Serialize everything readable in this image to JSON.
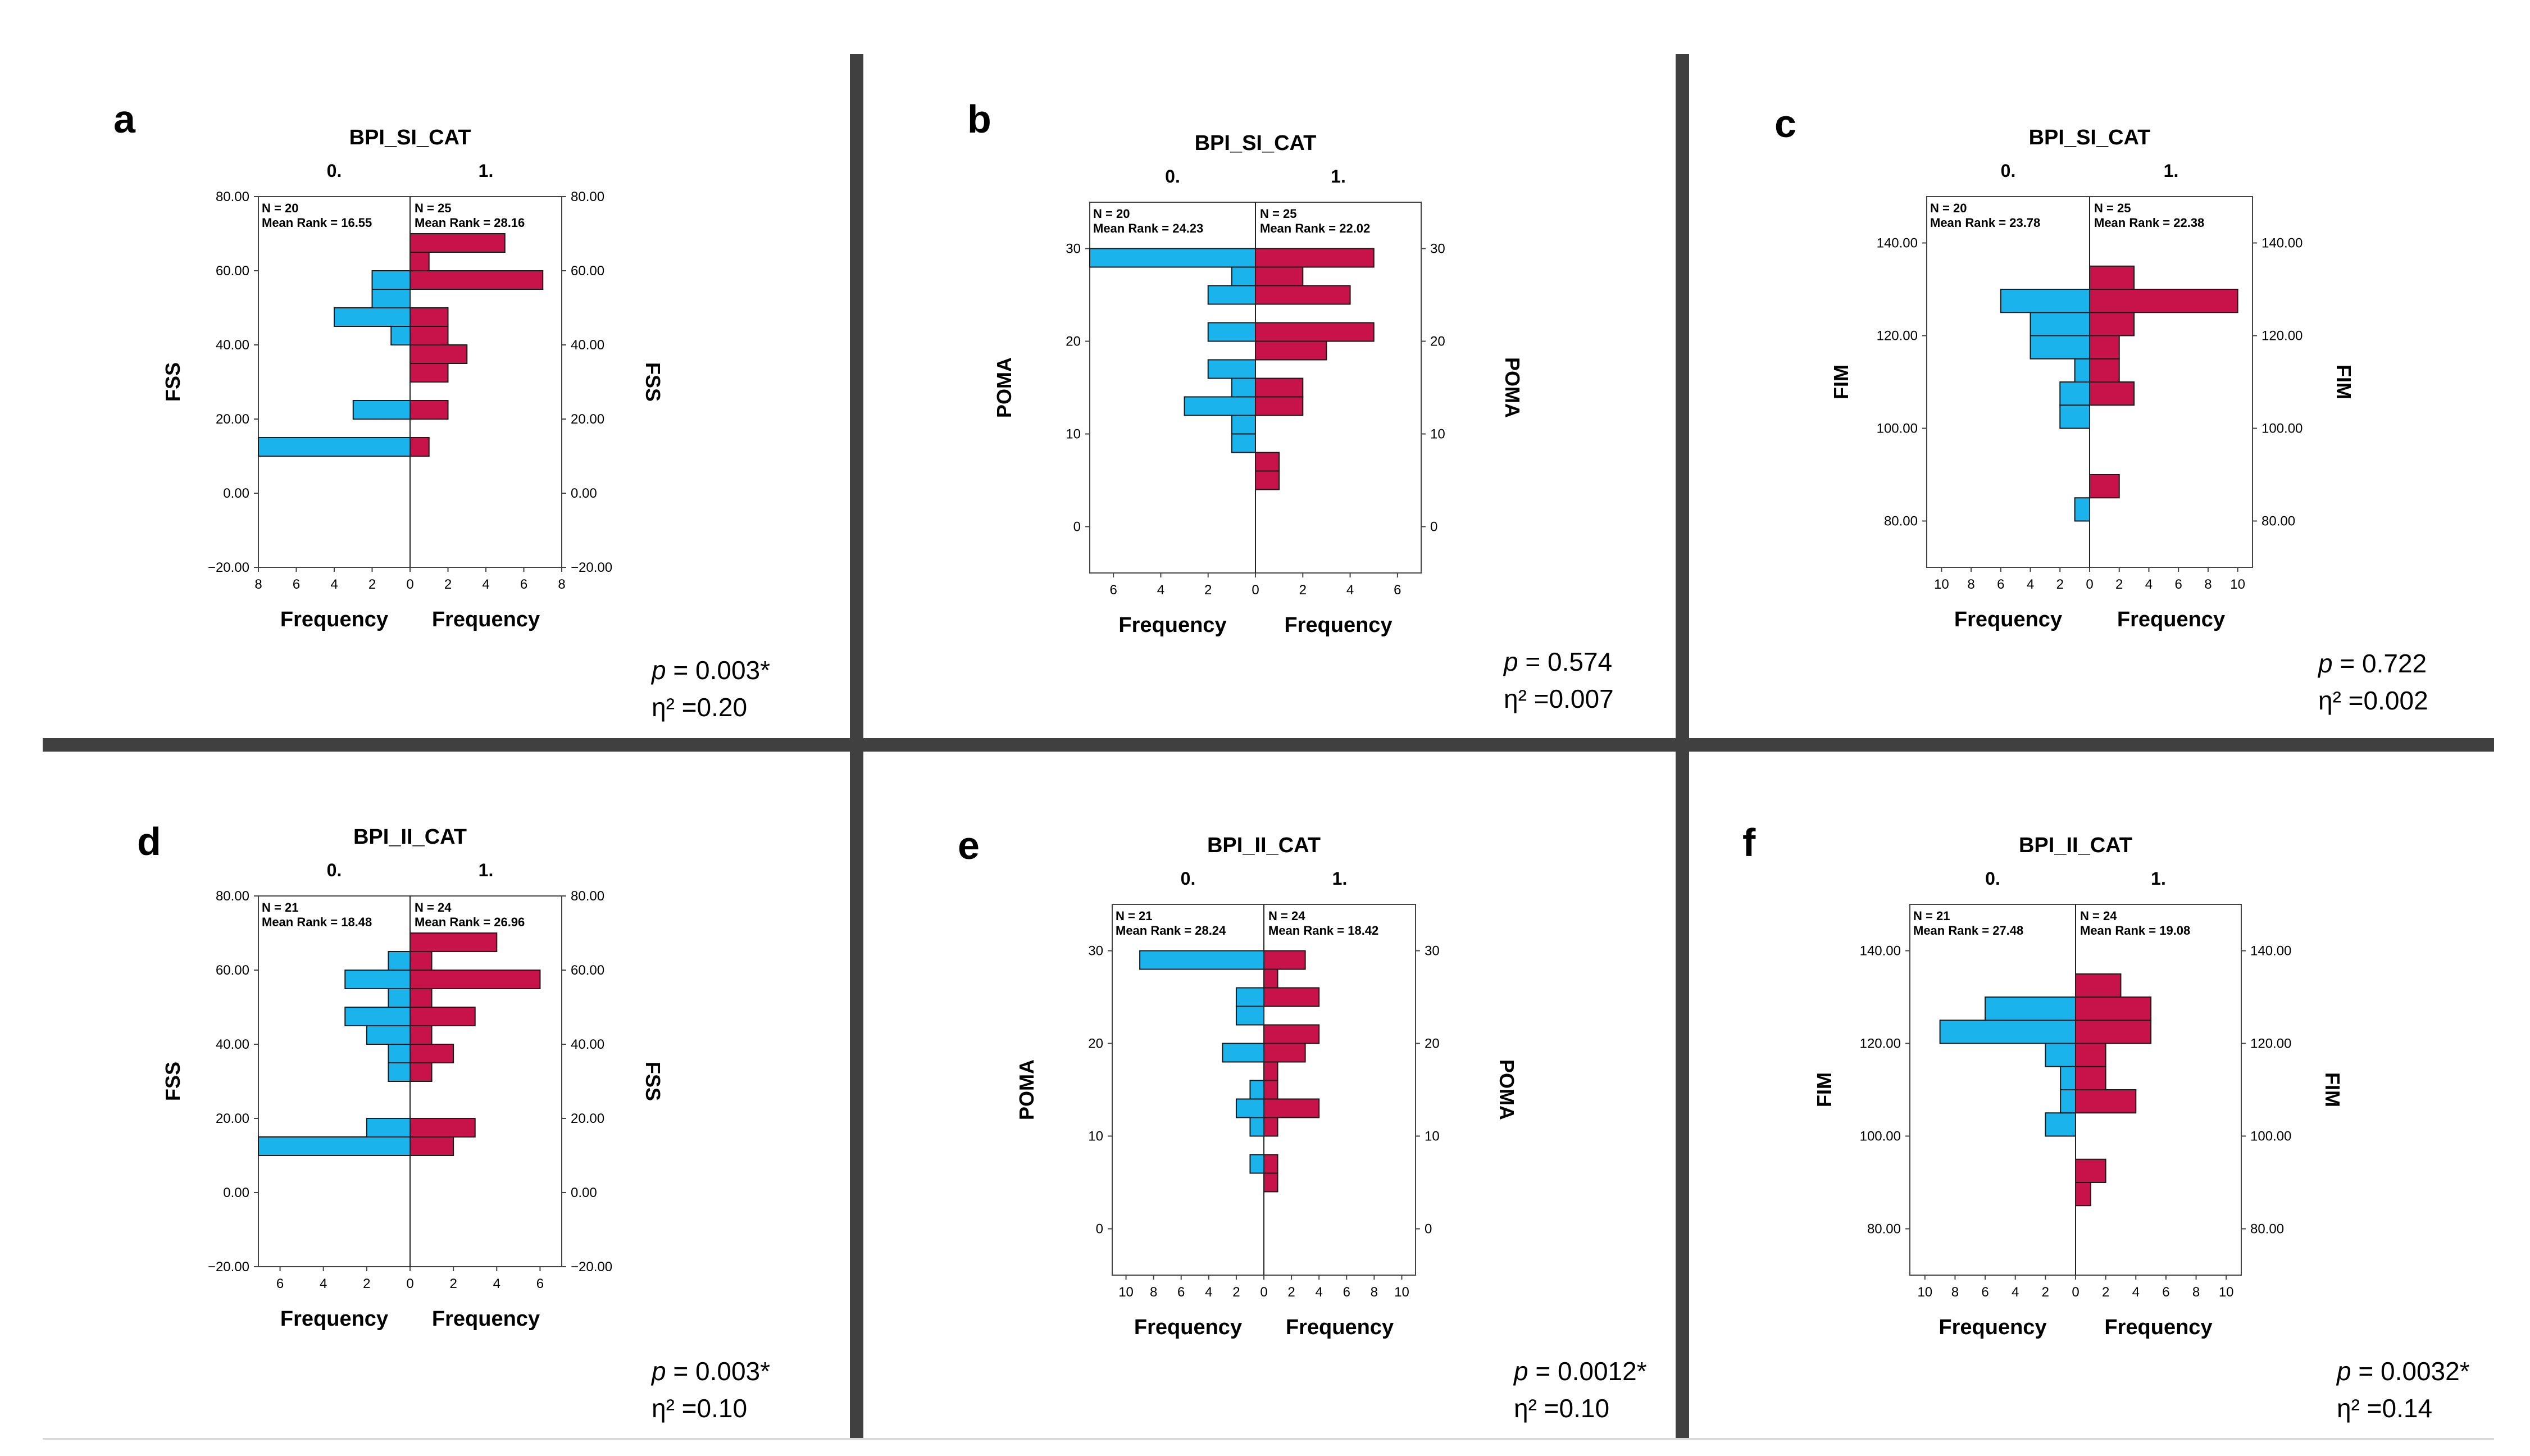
{
  "colors": {
    "group0": "#1bb3ec",
    "group1": "#c8124a",
    "stroke": "#1a1a1a",
    "divider": "#404040"
  },
  "panels": [
    {
      "label": "a",
      "p_prefix": "p",
      "p_rest": " = 0.003*",
      "eta_text": "η² =0.20"
    },
    {
      "label": "b",
      "p_prefix": "p",
      "p_rest": " = 0.574",
      "eta_text": "η² =0.007"
    },
    {
      "label": "c",
      "p_prefix": "p",
      "p_rest": " = 0.722",
      "eta_text": "η² =0.002"
    },
    {
      "label": "d",
      "p_prefix": "p",
      "p_rest": " = 0.003*",
      "eta_text": "η² =0.10"
    },
    {
      "label": "e",
      "p_prefix": "p",
      "p_rest": " = 0.0012*",
      "eta_text": "η² =0.10"
    },
    {
      "label": "f",
      "p_prefix": "p",
      "p_rest": " = 0.0032*",
      "eta_text": "η² =0.14"
    }
  ],
  "chart_data": [
    {
      "type": "bar",
      "orientation": "population-pyramid",
      "title": "BPI_SI_CAT",
      "ylabel": "FSS",
      "xlabel": "Frequency",
      "ylim": [
        -20,
        80
      ],
      "yticks": [
        -20,
        0,
        20,
        40,
        60,
        80
      ],
      "ytick_labels": [
        "−20.00",
        "0.00",
        "20.00",
        "40.00",
        "60.00",
        "80.00"
      ],
      "xmax": 8,
      "xticks": [
        8,
        6,
        4,
        2,
        0
      ],
      "bin_width": 5,
      "groups": [
        {
          "name": "0.",
          "n_text": "N = 20",
          "rank_text": "Mean Rank = 16.55",
          "bins": [
            [
              10,
              8
            ],
            [
              20,
              3
            ],
            [
              40,
              1
            ],
            [
              45,
              4
            ],
            [
              50,
              2
            ],
            [
              55,
              2
            ]
          ]
        },
        {
          "name": "1.",
          "n_text": "N = 25",
          "rank_text": "Mean Rank = 28.16",
          "bins": [
            [
              10,
              1
            ],
            [
              20,
              2
            ],
            [
              30,
              2
            ],
            [
              35,
              3
            ],
            [
              40,
              2
            ],
            [
              45,
              2
            ],
            [
              55,
              7
            ],
            [
              60,
              1
            ],
            [
              65,
              5
            ]
          ]
        }
      ]
    },
    {
      "type": "bar",
      "orientation": "population-pyramid",
      "title": "BPI_SI_CAT",
      "ylabel": "POMA",
      "xlabel": "Frequency",
      "ylim": [
        -5,
        35
      ],
      "yticks": [
        0,
        10,
        20,
        30
      ],
      "ytick_labels": [
        "0",
        "10",
        "20",
        "30"
      ],
      "xmax": 7,
      "xticks": [
        6,
        4,
        2,
        0
      ],
      "bin_width": 2,
      "groups": [
        {
          "name": "0.",
          "n_text": "N = 20",
          "rank_text": "Mean Rank = 24.23",
          "bins": [
            [
              8,
              1
            ],
            [
              10,
              1
            ],
            [
              12,
              3
            ],
            [
              14,
              1
            ],
            [
              16,
              2
            ],
            [
              20,
              2
            ],
            [
              24,
              2
            ],
            [
              26,
              1
            ],
            [
              28,
              7
            ]
          ]
        },
        {
          "name": "1.",
          "n_text": "N = 25",
          "rank_text": "Mean Rank = 22.02",
          "bins": [
            [
              4,
              1
            ],
            [
              6,
              1
            ],
            [
              12,
              2
            ],
            [
              14,
              2
            ],
            [
              18,
              3
            ],
            [
              20,
              5
            ],
            [
              24,
              4
            ],
            [
              26,
              2
            ],
            [
              28,
              5
            ]
          ]
        }
      ]
    },
    {
      "type": "bar",
      "orientation": "population-pyramid",
      "title": "BPI_SI_CAT",
      "ylabel": "FIM",
      "xlabel": "Frequency",
      "ylim": [
        70,
        150
      ],
      "yticks": [
        80,
        100,
        120,
        140
      ],
      "ytick_labels": [
        "80.00",
        "100.00",
        "120.00",
        "140.00"
      ],
      "xmax": 11,
      "xticks": [
        10,
        8,
        6,
        4,
        2,
        0
      ],
      "bin_width": 5,
      "groups": [
        {
          "name": "0.",
          "n_text": "N = 20",
          "rank_text": "Mean Rank = 23.78",
          "bins": [
            [
              80,
              1
            ],
            [
              100,
              2
            ],
            [
              105,
              2
            ],
            [
              110,
              1
            ],
            [
              115,
              4
            ],
            [
              120,
              4
            ],
            [
              125,
              6
            ]
          ]
        },
        {
          "name": "1.",
          "n_text": "N = 25",
          "rank_text": "Mean Rank = 22.38",
          "bins": [
            [
              85,
              2
            ],
            [
              105,
              3
            ],
            [
              110,
              2
            ],
            [
              115,
              2
            ],
            [
              120,
              3
            ],
            [
              125,
              10
            ],
            [
              130,
              3
            ]
          ]
        }
      ]
    },
    {
      "type": "bar",
      "orientation": "population-pyramid",
      "title": "BPI_II_CAT",
      "ylabel": "FSS",
      "xlabel": "Frequency",
      "ylim": [
        -20,
        80
      ],
      "yticks": [
        -20,
        0,
        20,
        40,
        60,
        80
      ],
      "ytick_labels": [
        "−20.00",
        "0.00",
        "20.00",
        "40.00",
        "60.00",
        "80.00"
      ],
      "xmax": 7,
      "xticks": [
        6,
        4,
        2,
        0
      ],
      "bin_width": 5,
      "groups": [
        {
          "name": "0.",
          "n_text": "N = 21",
          "rank_text": "Mean Rank = 18.48",
          "bins": [
            [
              10,
              7
            ],
            [
              15,
              2
            ],
            [
              30,
              1
            ],
            [
              35,
              1
            ],
            [
              40,
              2
            ],
            [
              45,
              3
            ],
            [
              50,
              1
            ],
            [
              55,
              3
            ],
            [
              60,
              1
            ]
          ]
        },
        {
          "name": "1.",
          "n_text": "N = 24",
          "rank_text": "Mean Rank = 26.96",
          "bins": [
            [
              10,
              2
            ],
            [
              15,
              3
            ],
            [
              30,
              1
            ],
            [
              35,
              2
            ],
            [
              40,
              1
            ],
            [
              45,
              3
            ],
            [
              50,
              1
            ],
            [
              55,
              6
            ],
            [
              60,
              1
            ],
            [
              65,
              4
            ]
          ]
        }
      ]
    },
    {
      "type": "bar",
      "orientation": "population-pyramid",
      "title": "BPI_II_CAT",
      "ylabel": "POMA",
      "xlabel": "Frequency",
      "ylim": [
        -5,
        35
      ],
      "yticks": [
        0,
        10,
        20,
        30
      ],
      "ytick_labels": [
        "0",
        "10",
        "20",
        "30"
      ],
      "xmax": 11,
      "xticks": [
        10,
        8,
        6,
        4,
        2,
        0
      ],
      "bin_width": 2,
      "groups": [
        {
          "name": "0.",
          "n_text": "N = 21",
          "rank_text": "Mean Rank = 28.24",
          "bins": [
            [
              6,
              1
            ],
            [
              10,
              1
            ],
            [
              12,
              2
            ],
            [
              14,
              1
            ],
            [
              18,
              3
            ],
            [
              22,
              2
            ],
            [
              24,
              2
            ],
            [
              28,
              9
            ]
          ]
        },
        {
          "name": "1.",
          "n_text": "N = 24",
          "rank_text": "Mean Rank = 18.42",
          "bins": [
            [
              4,
              1
            ],
            [
              6,
              1
            ],
            [
              10,
              1
            ],
            [
              12,
              4
            ],
            [
              14,
              1
            ],
            [
              16,
              1
            ],
            [
              18,
              3
            ],
            [
              20,
              4
            ],
            [
              24,
              4
            ],
            [
              26,
              1
            ],
            [
              28,
              3
            ]
          ]
        }
      ]
    },
    {
      "type": "bar",
      "orientation": "population-pyramid",
      "title": "BPI_II_CAT",
      "ylabel": "FIM",
      "xlabel": "Frequency",
      "ylim": [
        70,
        150
      ],
      "yticks": [
        80,
        100,
        120,
        140
      ],
      "ytick_labels": [
        "80.00",
        "100.00",
        "120.00",
        "140.00"
      ],
      "xmax": 11,
      "xticks": [
        10,
        8,
        6,
        4,
        2,
        0
      ],
      "bin_width": 5,
      "groups": [
        {
          "name": "0.",
          "n_text": "N = 21",
          "rank_text": "Mean Rank = 27.48",
          "bins": [
            [
              100,
              2
            ],
            [
              105,
              1
            ],
            [
              110,
              1
            ],
            [
              115,
              2
            ],
            [
              120,
              9
            ],
            [
              125,
              6
            ]
          ]
        },
        {
          "name": "1.",
          "n_text": "N = 24",
          "rank_text": "Mean Rank = 19.08",
          "bins": [
            [
              85,
              1
            ],
            [
              90,
              2
            ],
            [
              105,
              4
            ],
            [
              110,
              2
            ],
            [
              115,
              2
            ],
            [
              120,
              5
            ],
            [
              125,
              5
            ],
            [
              130,
              3
            ]
          ]
        }
      ]
    }
  ]
}
